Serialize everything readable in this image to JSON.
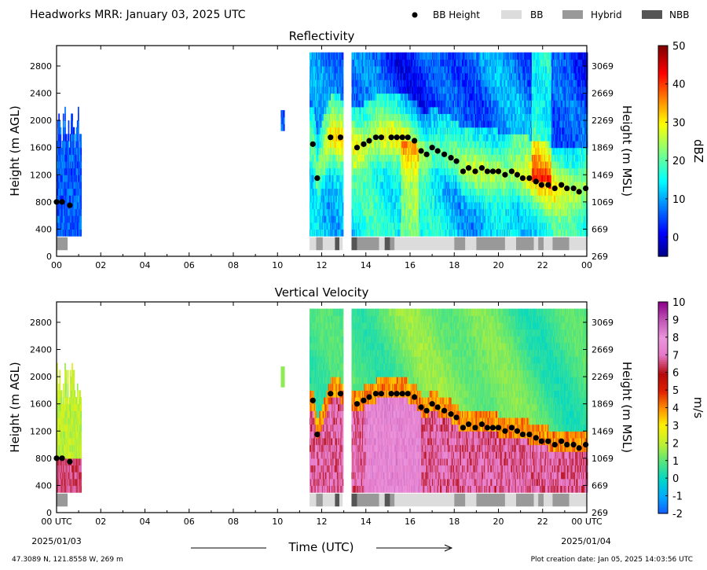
{
  "header": {
    "title": "Headworks MRR:  January 03, 2025 UTC",
    "legend": [
      {
        "label": "BB Height",
        "kind": "dot",
        "color": "#000000"
      },
      {
        "label": "BB",
        "kind": "box",
        "color": "#dcdcdc"
      },
      {
        "label": "Hybrid",
        "kind": "box",
        "color": "#999999"
      },
      {
        "label": "NBB",
        "kind": "box",
        "color": "#555555"
      }
    ]
  },
  "footer": {
    "location": "47.3089 N, 121.8558 W, 269 m",
    "creation": "Plot creation date: Jan 05, 2025 14:03:56 UTC",
    "xlabel": "Time (UTC)",
    "start_date": "2025/01/03",
    "end_date": "2025/01/04"
  },
  "colors": {
    "bb": "#dcdcdc",
    "hybrid": "#999999",
    "nbb": "#555555",
    "bb_dot": "#000000"
  },
  "chart_data": [
    {
      "type": "heatmap",
      "title": "Reflectivity",
      "xlabel": "",
      "ylabel": "Height (m AGL)",
      "ylabel_right": "Height (m MSL)",
      "xlim": [
        0,
        24
      ],
      "ylim": [
        0,
        3100
      ],
      "x_ticks": [
        "00",
        "02",
        "04",
        "06",
        "08",
        "10",
        "12",
        "14",
        "16",
        "18",
        "20",
        "22",
        "00"
      ],
      "y_ticks": [
        0,
        400,
        800,
        1200,
        1600,
        2000,
        2400,
        2800
      ],
      "y_ticks_right": [
        269,
        669,
        1069,
        1469,
        1869,
        2269,
        2669,
        3069
      ],
      "colorbar": {
        "label": "dBZ",
        "range": [
          -5,
          50
        ],
        "ticks": [
          0,
          10,
          20,
          30,
          40,
          50
        ],
        "palette": "jet"
      },
      "data_coverage_hours": [
        [
          0.0,
          1.1
        ],
        [
          10.15,
          10.3
        ],
        [
          11.45,
          12.95
        ],
        [
          13.35,
          24.0
        ]
      ],
      "data_height_range": [
        300,
        3000
      ],
      "bright_band": {
        "hours": [
          0.0,
          0.25,
          0.6,
          11.6,
          11.8,
          12.4,
          12.85,
          13.6,
          13.9,
          14.15,
          14.45,
          14.7,
          15.15,
          15.4,
          15.65,
          15.9,
          16.2,
          16.5,
          16.75,
          17.0,
          17.25,
          17.55,
          17.85,
          18.1,
          18.4,
          18.65,
          18.95,
          19.25,
          19.5,
          19.75,
          20.0,
          20.3,
          20.6,
          20.85,
          21.1,
          21.4,
          21.7,
          21.95,
          22.25,
          22.55,
          22.85,
          23.1,
          23.4,
          23.65,
          23.95
        ],
        "heights_m_agl": [
          800,
          800,
          750,
          1650,
          1150,
          1750,
          1750,
          1600,
          1650,
          1700,
          1750,
          1750,
          1750,
          1750,
          1750,
          1750,
          1700,
          1550,
          1500,
          1600,
          1550,
          1500,
          1450,
          1400,
          1250,
          1300,
          1250,
          1300,
          1250,
          1250,
          1250,
          1200,
          1250,
          1200,
          1150,
          1150,
          1100,
          1050,
          1050,
          1000,
          1050,
          1000,
          1000,
          950,
          1000
        ]
      },
      "classification_segments": [
        {
          "start": 0.0,
          "end": 0.5,
          "class": "Hybrid"
        },
        {
          "start": 11.45,
          "end": 11.75,
          "class": "BB"
        },
        {
          "start": 11.75,
          "end": 12.05,
          "class": "Hybrid"
        },
        {
          "start": 12.05,
          "end": 12.6,
          "class": "BB"
        },
        {
          "start": 12.6,
          "end": 12.8,
          "class": "NBB"
        },
        {
          "start": 12.8,
          "end": 12.95,
          "class": "BB"
        },
        {
          "start": 13.35,
          "end": 13.6,
          "class": "NBB"
        },
        {
          "start": 13.6,
          "end": 14.6,
          "class": "Hybrid"
        },
        {
          "start": 14.6,
          "end": 14.85,
          "class": "BB"
        },
        {
          "start": 14.85,
          "end": 15.1,
          "class": "NBB"
        },
        {
          "start": 15.1,
          "end": 15.3,
          "class": "Hybrid"
        },
        {
          "start": 15.3,
          "end": 18.0,
          "class": "BB"
        },
        {
          "start": 18.0,
          "end": 18.5,
          "class": "Hybrid"
        },
        {
          "start": 18.5,
          "end": 19.0,
          "class": "BB"
        },
        {
          "start": 19.0,
          "end": 20.3,
          "class": "Hybrid"
        },
        {
          "start": 20.3,
          "end": 20.8,
          "class": "BB"
        },
        {
          "start": 20.8,
          "end": 21.6,
          "class": "Hybrid"
        },
        {
          "start": 21.6,
          "end": 21.8,
          "class": "BB"
        },
        {
          "start": 21.8,
          "end": 22.05,
          "class": "Hybrid"
        },
        {
          "start": 22.05,
          "end": 22.45,
          "class": "BB"
        },
        {
          "start": 22.45,
          "end": 23.2,
          "class": "Hybrid"
        },
        {
          "start": 23.2,
          "end": 24.0,
          "class": "BB"
        }
      ]
    },
    {
      "type": "heatmap",
      "title": "Vertical Velocity",
      "xlabel": "Time (UTC)",
      "ylabel": "Height (m AGL)",
      "ylabel_right": "Height (m MSL)",
      "xlim": [
        0,
        24
      ],
      "ylim": [
        0,
        3100
      ],
      "x_ticks": [
        "00 UTC",
        "02",
        "04",
        "06",
        "08",
        "10",
        "12",
        "14",
        "16",
        "18",
        "20",
        "22",
        "00 UTC"
      ],
      "y_ticks": [
        0,
        400,
        800,
        1200,
        1600,
        2000,
        2400,
        2800
      ],
      "y_ticks_right": [
        269,
        669,
        1069,
        1469,
        1869,
        2269,
        2669,
        3069
      ],
      "colorbar": {
        "label": "m/s",
        "range": [
          -2,
          10
        ],
        "ticks": [
          -2,
          -1,
          0,
          1,
          2,
          3,
          4,
          5,
          6,
          7,
          8,
          9,
          10
        ],
        "palette": "velocity"
      },
      "data_coverage_hours": [
        [
          0.0,
          1.1
        ],
        [
          10.15,
          10.3
        ],
        [
          11.45,
          12.95
        ],
        [
          13.35,
          24.0
        ]
      ],
      "data_height_range": [
        300,
        3000
      ],
      "bright_band": {
        "hours": [
          0.0,
          0.25,
          0.6,
          11.6,
          11.8,
          12.4,
          12.85,
          13.6,
          13.9,
          14.15,
          14.45,
          14.7,
          15.15,
          15.4,
          15.65,
          15.9,
          16.2,
          16.5,
          16.75,
          17.0,
          17.25,
          17.55,
          17.85,
          18.1,
          18.4,
          18.65,
          18.95,
          19.25,
          19.5,
          19.75,
          20.0,
          20.3,
          20.6,
          20.85,
          21.1,
          21.4,
          21.7,
          21.95,
          22.25,
          22.55,
          22.85,
          23.1,
          23.4,
          23.65,
          23.95
        ],
        "heights_m_agl": [
          800,
          800,
          750,
          1650,
          1150,
          1750,
          1750,
          1600,
          1650,
          1700,
          1750,
          1750,
          1750,
          1750,
          1750,
          1750,
          1700,
          1550,
          1500,
          1600,
          1550,
          1500,
          1450,
          1400,
          1250,
          1300,
          1250,
          1300,
          1250,
          1250,
          1250,
          1200,
          1250,
          1200,
          1150,
          1150,
          1100,
          1050,
          1050,
          1000,
          1050,
          1000,
          1000,
          950,
          1000
        ]
      },
      "classification_segments": [
        {
          "start": 0.0,
          "end": 0.5,
          "class": "Hybrid"
        },
        {
          "start": 11.45,
          "end": 11.75,
          "class": "BB"
        },
        {
          "start": 11.75,
          "end": 12.05,
          "class": "Hybrid"
        },
        {
          "start": 12.05,
          "end": 12.6,
          "class": "BB"
        },
        {
          "start": 12.6,
          "end": 12.8,
          "class": "NBB"
        },
        {
          "start": 12.8,
          "end": 12.95,
          "class": "BB"
        },
        {
          "start": 13.35,
          "end": 13.6,
          "class": "NBB"
        },
        {
          "start": 13.6,
          "end": 14.6,
          "class": "Hybrid"
        },
        {
          "start": 14.6,
          "end": 14.85,
          "class": "BB"
        },
        {
          "start": 14.85,
          "end": 15.1,
          "class": "NBB"
        },
        {
          "start": 15.1,
          "end": 15.3,
          "class": "Hybrid"
        },
        {
          "start": 15.3,
          "end": 18.0,
          "class": "BB"
        },
        {
          "start": 18.0,
          "end": 18.5,
          "class": "Hybrid"
        },
        {
          "start": 18.5,
          "end": 19.0,
          "class": "BB"
        },
        {
          "start": 19.0,
          "end": 20.3,
          "class": "Hybrid"
        },
        {
          "start": 20.3,
          "end": 20.8,
          "class": "BB"
        },
        {
          "start": 20.8,
          "end": 21.6,
          "class": "Hybrid"
        },
        {
          "start": 21.6,
          "end": 21.8,
          "class": "BB"
        },
        {
          "start": 21.8,
          "end": 22.05,
          "class": "Hybrid"
        },
        {
          "start": 22.05,
          "end": 22.45,
          "class": "BB"
        },
        {
          "start": 22.45,
          "end": 23.2,
          "class": "Hybrid"
        },
        {
          "start": 23.2,
          "end": 24.0,
          "class": "BB"
        }
      ]
    }
  ]
}
